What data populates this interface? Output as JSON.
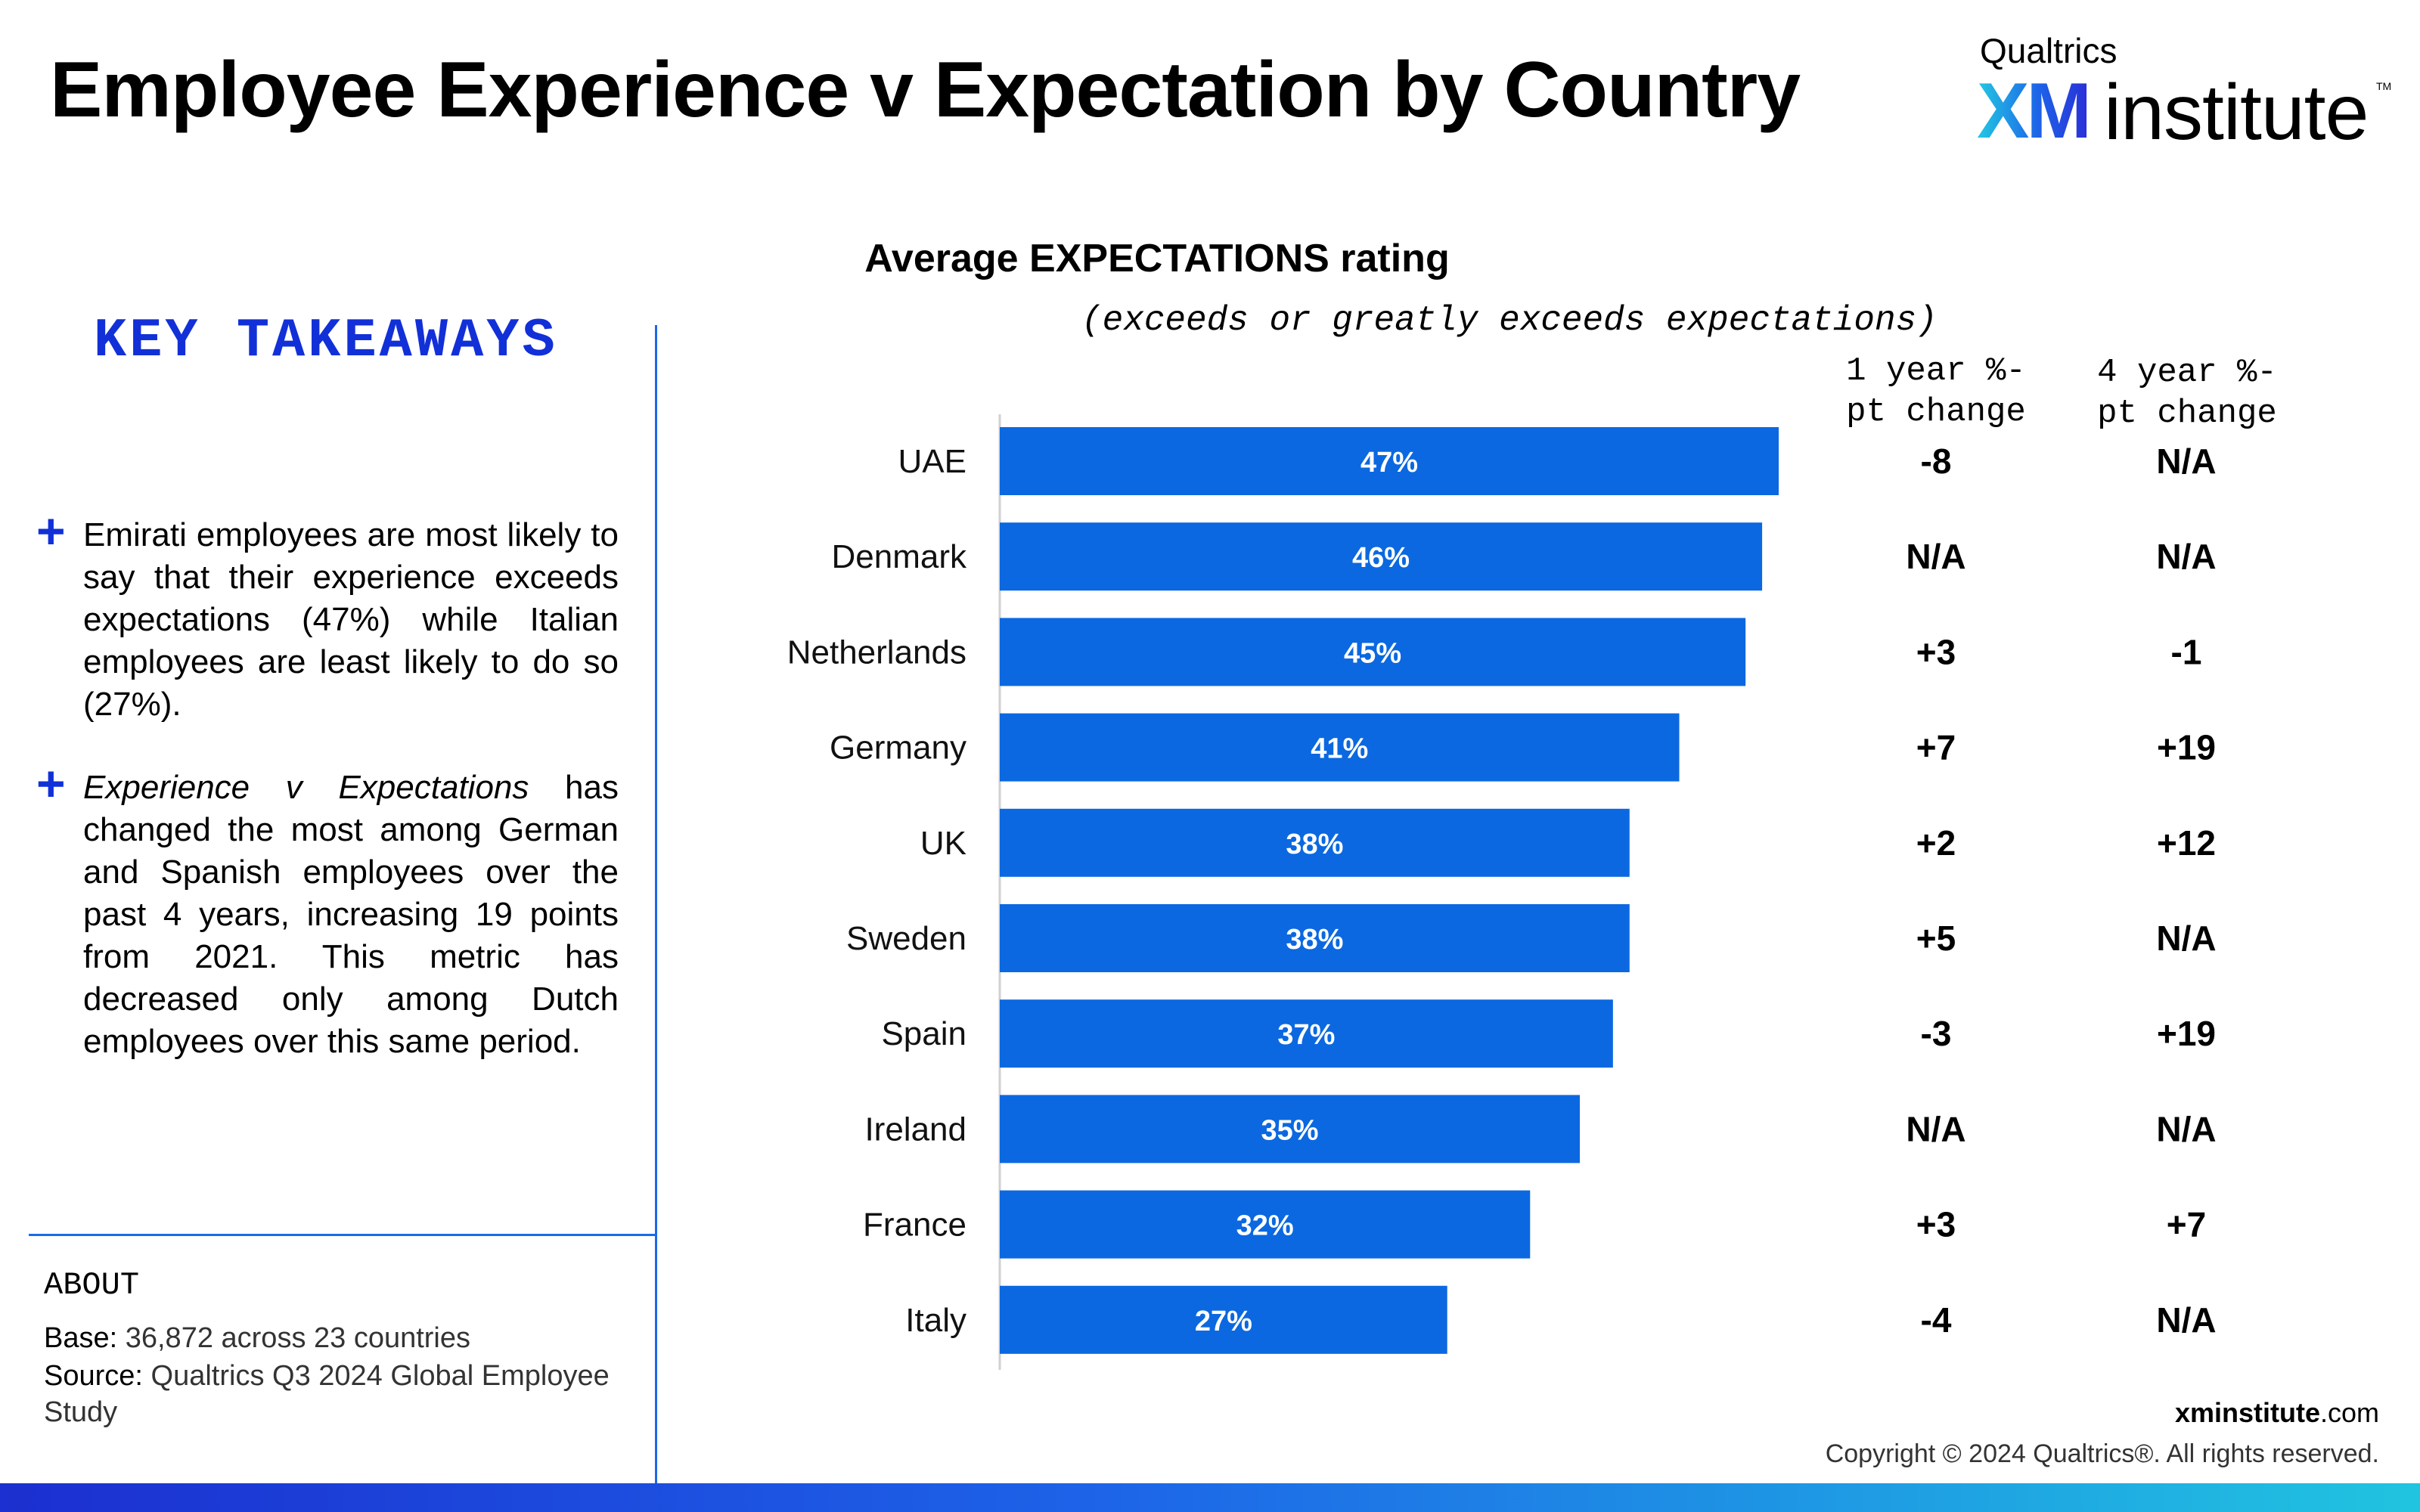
{
  "page": {
    "title": "Employee Experience v Expectation by Country"
  },
  "logo": {
    "brand": "Qualtrics",
    "xm": "XM",
    "institute": "institute",
    "tm": "TM"
  },
  "takeaways": {
    "heading": "KEY TAKEAWAYS",
    "bullets": [
      "Emirati employees are most likely to say that their experience exceeds expectations (47%) while Italian employees are least likely to do so (27%).",
      "Experience v Expectations has changed the most among German and Spanish employees over the past 4 years, increasing 19 points from 2021. This metric has decreased only among Dutch employees over this same period."
    ],
    "bullet2_italic": "Experience v Expectations"
  },
  "about": {
    "label": "ABOUT",
    "base_key": "Base:",
    "base_value": "36,872 across 23 countries",
    "source_key": "Source:",
    "source_value": "Qualtrics Q3 2024 Global Employee Study"
  },
  "chart_data": {
    "type": "bar",
    "orientation": "horizontal",
    "title": "Average EXPECTATIONS rating",
    "subtitle": "(exceeds or greatly exceeds expectations)",
    "categories": [
      "UAE",
      "Denmark",
      "Netherlands",
      "Germany",
      "UK",
      "Sweden",
      "Spain",
      "Ireland",
      "France",
      "Italy"
    ],
    "values": [
      47,
      46,
      45,
      41,
      38,
      38,
      37,
      35,
      32,
      27
    ],
    "value_labels": [
      "47%",
      "46%",
      "45%",
      "41%",
      "38%",
      "38%",
      "37%",
      "35%",
      "32%",
      "27%"
    ],
    "xlim": [
      0,
      47
    ],
    "bar_color": "#0b68e0",
    "table_columns": [
      "1 year %-\npt change",
      "4 year %-\npt change"
    ],
    "one_year_change": [
      "-8",
      "N/A",
      "+3",
      "+7",
      "+2",
      "+5",
      "-3",
      "N/A",
      "+3",
      "-4"
    ],
    "four_year_change": [
      "N/A",
      "N/A",
      "-1",
      "+19",
      "+12",
      "N/A",
      "+19",
      "N/A",
      "+7",
      "N/A"
    ]
  },
  "footer": {
    "domain_bold": "xminstitute",
    "domain_rest": ".com",
    "copyright": "Copyright © 2024 Qualtrics®. All rights reserved."
  },
  "colors": {
    "accent": "#1230d8",
    "bar": "#0b68e0",
    "divider": "#1a6ae6"
  }
}
